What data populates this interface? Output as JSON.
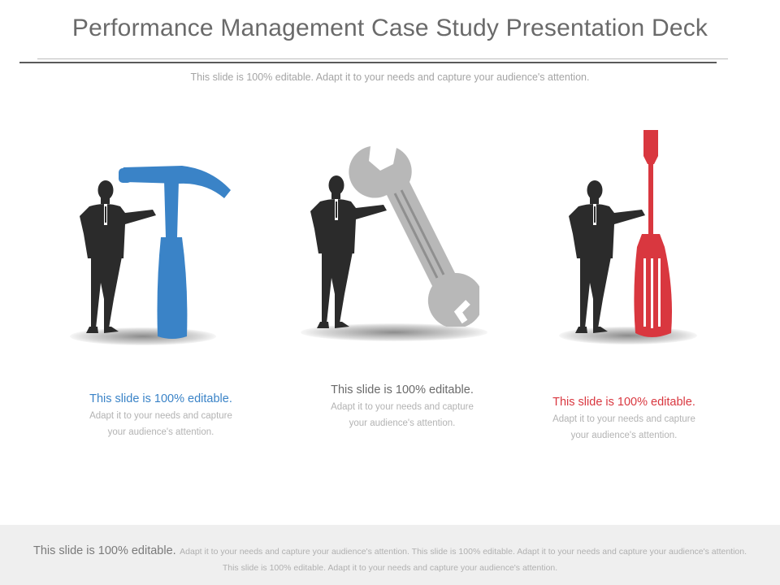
{
  "slide": {
    "title": "Performance Management Case Study Presentation Deck",
    "subtitle": "This slide is 100% editable. Adapt it to your needs and capture your audience's attention."
  },
  "items": [
    {
      "tool": "hammer-icon",
      "color": "#3a83c7",
      "lead": "This slide is 100% editable.",
      "body": "Adapt it to your needs and capture your audience's attention."
    },
    {
      "tool": "wrench-icon",
      "color": "#b8b8b8",
      "lead": "This slide is 100% editable.",
      "body": "Adapt it to your needs and capture your audience's attention."
    },
    {
      "tool": "screwdriver-icon",
      "color": "#d9373f",
      "lead": "This slide is 100% editable.",
      "body": "Adapt it to your needs and capture your audience's attention."
    }
  ],
  "footer": {
    "lead": "This slide is 100% editable.",
    "body": "Adapt it to your needs and capture your audience's attention. This slide is 100% editable. Adapt it to your needs and capture your audience's attention. This slide is 100% editable. Adapt it to your needs and capture your audience's attention."
  }
}
